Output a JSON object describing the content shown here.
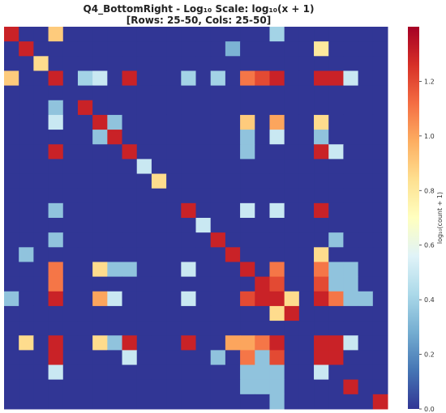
{
  "chart_data": {
    "type": "heatmap",
    "title_line1": "Q4_BottomRight - Log₁₀ Scale: log₁₀(x + 1)",
    "title_line2": "[Rows: 25-50, Cols: 25-50]",
    "colorbar": {
      "label": "log₁₀(count + 1)",
      "range": [
        0,
        1.4
      ],
      "ticks": [
        0.0,
        0.2,
        0.4,
        0.6,
        0.8,
        1.0,
        1.2
      ],
      "tick_labels": [
        "0.0",
        "0.2",
        "0.4",
        "0.6",
        "0.8",
        "1.0",
        "1.2"
      ],
      "colormap": "RdYlBu_r"
    },
    "n_rows": 26,
    "n_cols": 26,
    "matrix": [
      [
        1.3,
        0,
        0,
        0.9,
        0,
        0,
        0,
        0,
        0,
        0,
        0,
        0,
        0,
        0,
        0,
        0,
        0,
        0,
        0.4,
        0,
        0,
        0,
        0,
        0,
        0,
        0
      ],
      [
        0,
        1.3,
        0,
        0,
        0,
        0,
        0,
        0,
        0,
        0,
        0,
        0,
        0,
        0,
        0,
        0.3,
        0,
        0,
        0,
        0,
        0,
        0.8,
        0,
        0,
        0,
        0
      ],
      [
        0,
        0,
        0.85,
        0,
        0,
        0,
        0,
        0,
        0,
        0,
        0,
        0,
        0,
        0,
        0,
        0,
        0,
        0,
        0,
        0,
        0,
        0,
        0,
        0,
        0,
        0
      ],
      [
        0.9,
        0,
        0,
        1.3,
        0,
        0.4,
        0.5,
        0,
        1.3,
        0,
        0,
        0,
        0.4,
        0,
        0.4,
        0,
        1.1,
        1.2,
        1.3,
        0,
        0,
        1.3,
        1.3,
        0.5,
        0,
        0
      ],
      [
        0,
        0,
        0,
        0,
        0,
        0,
        0,
        0,
        0,
        0,
        0,
        0,
        0,
        0,
        0,
        0,
        0,
        0,
        0,
        0,
        0,
        0,
        0,
        0,
        0,
        0
      ],
      [
        0,
        0,
        0,
        0.35,
        0,
        1.3,
        0,
        0,
        0,
        0,
        0,
        0,
        0,
        0,
        0,
        0,
        0,
        0,
        0,
        0,
        0,
        0,
        0,
        0,
        0,
        0
      ],
      [
        0,
        0,
        0,
        0.5,
        0,
        0,
        1.3,
        0.35,
        0,
        0,
        0,
        0,
        0,
        0,
        0,
        0,
        0.9,
        0,
        1.0,
        0,
        0,
        0.85,
        0,
        0,
        0,
        0
      ],
      [
        0,
        0,
        0,
        0,
        0,
        0,
        0.35,
        1.3,
        0,
        0,
        0,
        0,
        0,
        0,
        0,
        0,
        0.35,
        0,
        0.5,
        0,
        0,
        0.35,
        0,
        0,
        0,
        0
      ],
      [
        0,
        0,
        0,
        1.3,
        0,
        0,
        0,
        0,
        1.3,
        0,
        0,
        0,
        0,
        0,
        0,
        0,
        0.35,
        0,
        0,
        0,
        0,
        1.3,
        0.5,
        0,
        0,
        0
      ],
      [
        0,
        0,
        0,
        0,
        0,
        0,
        0,
        0,
        0,
        0.5,
        0,
        0,
        0,
        0,
        0,
        0,
        0,
        0,
        0,
        0,
        0,
        0,
        0,
        0,
        0,
        0
      ],
      [
        0,
        0,
        0,
        0,
        0,
        0,
        0,
        0,
        0,
        0,
        0.85,
        0,
        0,
        0,
        0,
        0,
        0,
        0,
        0,
        0,
        0,
        0,
        0,
        0,
        0,
        0
      ],
      [
        0,
        0,
        0,
        0,
        0,
        0,
        0,
        0,
        0,
        0,
        0,
        0,
        0,
        0,
        0,
        0,
        0,
        0,
        0,
        0,
        0,
        0,
        0,
        0,
        0,
        0
      ],
      [
        0,
        0,
        0,
        0.35,
        0,
        0,
        0,
        0,
        0,
        0,
        0,
        0,
        1.3,
        0,
        0,
        0,
        0.5,
        0,
        0.5,
        0,
        0,
        1.3,
        0,
        0,
        0,
        0
      ],
      [
        0,
        0,
        0,
        0,
        0,
        0,
        0,
        0,
        0,
        0,
        0,
        0,
        0,
        0.5,
        0,
        0,
        0,
        0,
        0,
        0,
        0,
        0,
        0,
        0,
        0,
        0
      ],
      [
        0,
        0,
        0,
        0.35,
        0,
        0,
        0,
        0,
        0,
        0,
        0,
        0,
        0,
        0,
        1.3,
        0,
        0,
        0,
        0,
        0,
        0,
        0,
        0.35,
        0,
        0,
        0
      ],
      [
        0,
        0.35,
        0,
        0,
        0,
        0,
        0,
        0,
        0,
        0,
        0,
        0,
        0,
        0,
        0,
        1.3,
        0,
        0,
        0,
        0,
        0,
        0.85,
        0,
        0,
        0,
        0
      ],
      [
        0,
        0,
        0,
        1.1,
        0,
        0,
        0.85,
        0.35,
        0.35,
        0,
        0,
        0,
        0.5,
        0,
        0,
        0,
        1.3,
        0,
        1.1,
        0,
        0,
        1.1,
        0.35,
        0.35,
        0,
        0
      ],
      [
        0,
        0,
        0,
        1.1,
        0,
        0,
        0,
        0,
        0,
        0,
        0,
        0,
        0,
        0,
        0,
        0,
        0,
        1.3,
        1.2,
        0,
        0,
        1.2,
        0.35,
        0.35,
        0,
        0
      ],
      [
        0.35,
        0,
        0,
        1.3,
        0,
        0,
        1.0,
        0.5,
        0,
        0,
        0,
        0,
        0.5,
        0,
        0,
        0,
        1.2,
        1.3,
        1.3,
        0.85,
        0,
        1.3,
        1.1,
        0.35,
        0.35,
        0
      ],
      [
        0,
        0,
        0,
        0,
        0,
        0,
        0,
        0,
        0,
        0,
        0,
        0,
        0,
        0,
        0,
        0,
        0,
        0,
        0.85,
        1.3,
        0,
        0,
        0,
        0,
        0,
        0
      ],
      [
        0,
        0,
        0,
        0,
        0,
        0,
        0,
        0,
        0,
        0,
        0,
        0,
        0,
        0,
        0,
        0,
        0,
        0,
        0,
        0,
        0,
        0,
        0,
        0,
        0,
        0
      ],
      [
        0,
        0.85,
        0,
        1.3,
        0,
        0,
        0.85,
        0.35,
        1.3,
        0,
        0,
        0,
        1.3,
        0,
        0,
        1.0,
        1.0,
        1.1,
        1.3,
        0,
        0,
        1.3,
        1.3,
        0.5,
        0,
        0
      ],
      [
        0,
        0,
        0,
        1.3,
        0,
        0,
        0,
        0,
        0.5,
        0,
        0,
        0,
        0,
        0,
        0.35,
        0,
        1.1,
        0.35,
        1.2,
        0,
        0,
        1.3,
        1.3,
        0,
        0,
        0
      ],
      [
        0,
        0,
        0,
        0.5,
        0,
        0,
        0,
        0,
        0,
        0,
        0,
        0,
        0,
        0,
        0,
        0,
        0.35,
        0.35,
        0.35,
        0,
        0,
        0.5,
        0,
        0,
        0,
        0
      ],
      [
        0,
        0,
        0,
        0,
        0,
        0,
        0,
        0,
        0,
        0,
        0,
        0,
        0,
        0,
        0,
        0,
        0.35,
        0.35,
        0.35,
        0,
        0,
        0,
        0,
        1.3,
        0,
        0
      ],
      [
        0,
        0,
        0,
        0,
        0,
        0,
        0,
        0,
        0,
        0,
        0,
        0,
        0,
        0,
        0,
        0,
        0,
        0,
        0.35,
        0,
        0,
        0,
        0,
        0,
        0,
        1.3
      ]
    ]
  }
}
